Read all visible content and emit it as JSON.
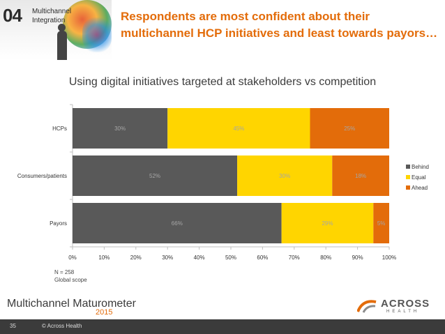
{
  "section": {
    "number": "04",
    "title_line1": "Multichannel",
    "title_line2": "Integration"
  },
  "headline": {
    "line1": "Respondents are most confident about their",
    "line2": "multichannel HCP initiatives and least towards payors…"
  },
  "chart_data": {
    "type": "bar",
    "orientation": "horizontal",
    "stacked": true,
    "title": "Using digital initiatives targeted at stakeholders vs competition",
    "categories": [
      "HCPs",
      "Consumers/patients",
      "Payors"
    ],
    "series": [
      {
        "name": "Behind",
        "values": [
          30,
          52,
          66
        ],
        "labels": [
          "30%",
          "52%",
          "66%"
        ],
        "color": "#595959"
      },
      {
        "name": "Equal",
        "values": [
          45,
          30,
          29
        ],
        "labels": [
          "45%",
          "30%",
          "29%"
        ],
        "color": "#ffd500"
      },
      {
        "name": "Ahead",
        "values": [
          25,
          18,
          5
        ],
        "labels": [
          "25%",
          "18%",
          "5%"
        ],
        "color": "#e36c0a"
      }
    ],
    "xlim": [
      0,
      100
    ],
    "x_ticks": [
      "0%",
      "10%",
      "20%",
      "30%",
      "40%",
      "50%",
      "60%",
      "70%",
      "80%",
      "90%",
      "100%"
    ],
    "grid": false,
    "legend": "right"
  },
  "note": {
    "line1": "N = 258",
    "line2": "Global scope"
  },
  "footer": {
    "brand": "Multichannel Maturometer",
    "year": "2015",
    "page": "35",
    "copyright": "© Across Health"
  },
  "logo": {
    "name": "ACROSS",
    "sub": "HEALTH"
  }
}
